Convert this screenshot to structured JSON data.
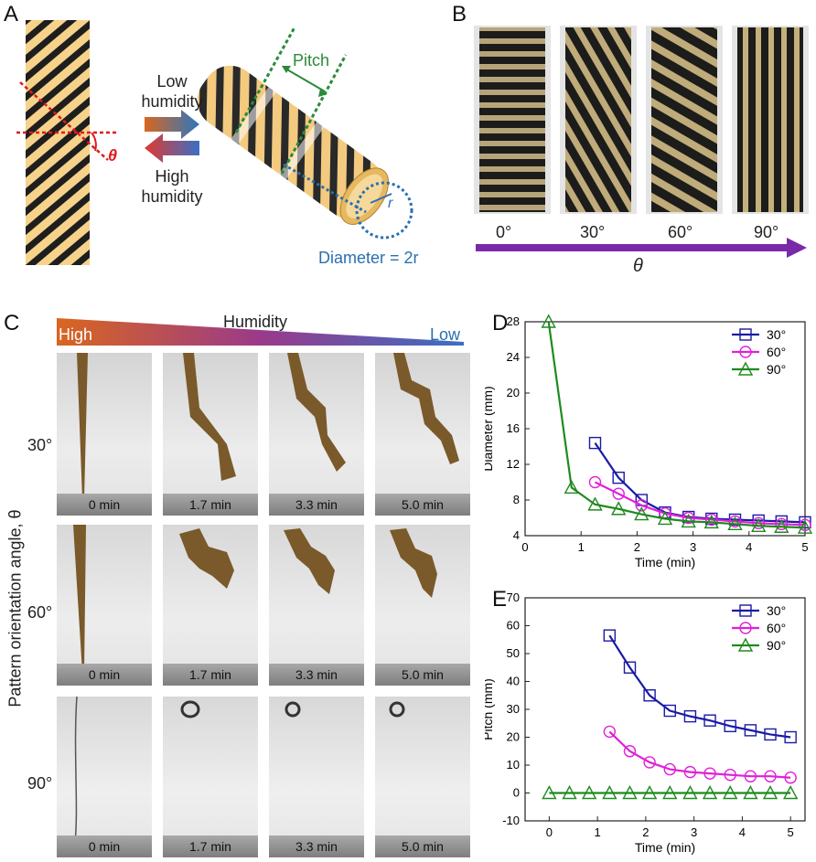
{
  "panels": {
    "A": {
      "label": "A",
      "low_humidity": [
        "Low",
        "humidity"
      ],
      "high_humidity": [
        "High",
        "humidity"
      ],
      "theta": "θ",
      "pitch": "Pitch",
      "diameter": "Diameter = 2r",
      "r_symbol": "r"
    },
    "B": {
      "label": "B",
      "angles": [
        "0°",
        "30°",
        "60°",
        "90°"
      ],
      "theta": "θ"
    },
    "C": {
      "label": "C",
      "humidity": "Humidity",
      "high": "High",
      "low": "Low",
      "y_axis": "Pattern orientation angle, θ",
      "rows": [
        "30°",
        "60°",
        "90°"
      ],
      "times": [
        "0 min",
        "1.7 min",
        "3.3 min",
        "5.0 min"
      ]
    },
    "D": {
      "label": "D"
    },
    "E": {
      "label": "E"
    }
  },
  "colors": {
    "s30": "#1a1aa6",
    "s60": "#e020d8",
    "s90": "#1f8a1f",
    "stripe_bg": "#f7d28a",
    "stripe": "#222222",
    "red": "#e01a1a",
    "green": "#2a8a3a",
    "blue": "#2a6fb0",
    "purple": "#7a2aa8"
  },
  "chart_data": [
    {
      "type": "line",
      "xlabel": "Time (min)",
      "ylabel": "Diameter (mm)",
      "xlim": [
        0,
        5
      ],
      "ylim": [
        4,
        28
      ],
      "xticks": [
        0,
        1,
        2,
        3,
        4,
        5
      ],
      "yticks": [
        4,
        8,
        12,
        16,
        20,
        24,
        28
      ],
      "legend_position": "top-right",
      "series": [
        {
          "name": "30°",
          "marker": "square",
          "x": [
            1.25,
            1.67,
            2.08,
            2.5,
            2.92,
            3.33,
            3.75,
            4.17,
            4.58,
            5.0
          ],
          "y": [
            14.4,
            10.5,
            8.0,
            6.6,
            6.1,
            5.9,
            5.8,
            5.7,
            5.6,
            5.5
          ]
        },
        {
          "name": "60°",
          "marker": "circle",
          "x": [
            1.25,
            1.67,
            2.08,
            2.5,
            2.92,
            3.33,
            3.75,
            4.17,
            4.58,
            5.0
          ],
          "y": [
            10.0,
            8.7,
            7.4,
            6.5,
            6.0,
            5.8,
            5.6,
            5.4,
            5.3,
            5.2
          ]
        },
        {
          "name": "90°",
          "marker": "triangle",
          "x": [
            0.42,
            0.83,
            1.25,
            1.67,
            2.08,
            2.5,
            2.92,
            3.33,
            3.75,
            4.17,
            4.58,
            5.0
          ],
          "y": [
            28.0,
            9.4,
            7.5,
            7.0,
            6.4,
            5.9,
            5.6,
            5.5,
            5.3,
            5.1,
            5.0,
            4.9
          ]
        }
      ]
    },
    {
      "type": "line",
      "xlabel": "Time (min)",
      "ylabel": "Pitch (mm)",
      "xlim": [
        -0.5,
        5.3
      ],
      "ylim": [
        -10,
        70
      ],
      "xticks": [
        0,
        1,
        2,
        3,
        4,
        5
      ],
      "yticks": [
        -10,
        0,
        10,
        20,
        30,
        40,
        50,
        60,
        70
      ],
      "legend_position": "top-right",
      "series": [
        {
          "name": "30°",
          "marker": "square",
          "x": [
            1.25,
            1.67,
            2.08,
            2.5,
            2.92,
            3.33,
            3.75,
            4.17,
            4.58,
            5.0
          ],
          "y": [
            56.5,
            45.0,
            35.0,
            29.5,
            27.5,
            26.0,
            24.0,
            22.5,
            21.0,
            20.0
          ]
        },
        {
          "name": "60°",
          "marker": "circle",
          "x": [
            1.25,
            1.67,
            2.08,
            2.5,
            2.92,
            3.33,
            3.75,
            4.17,
            4.58,
            5.0
          ],
          "y": [
            22.0,
            15.0,
            11.0,
            8.5,
            7.5,
            7.0,
            6.5,
            6.0,
            6.0,
            5.5
          ]
        },
        {
          "name": "90°",
          "marker": "triangle",
          "x": [
            0,
            0.42,
            0.83,
            1.25,
            1.67,
            2.08,
            2.5,
            2.92,
            3.33,
            3.75,
            4.17,
            4.58,
            5.0
          ],
          "y": [
            0,
            0,
            0,
            0,
            0,
            0,
            0,
            0,
            0,
            0,
            0,
            0,
            0
          ]
        }
      ]
    }
  ]
}
